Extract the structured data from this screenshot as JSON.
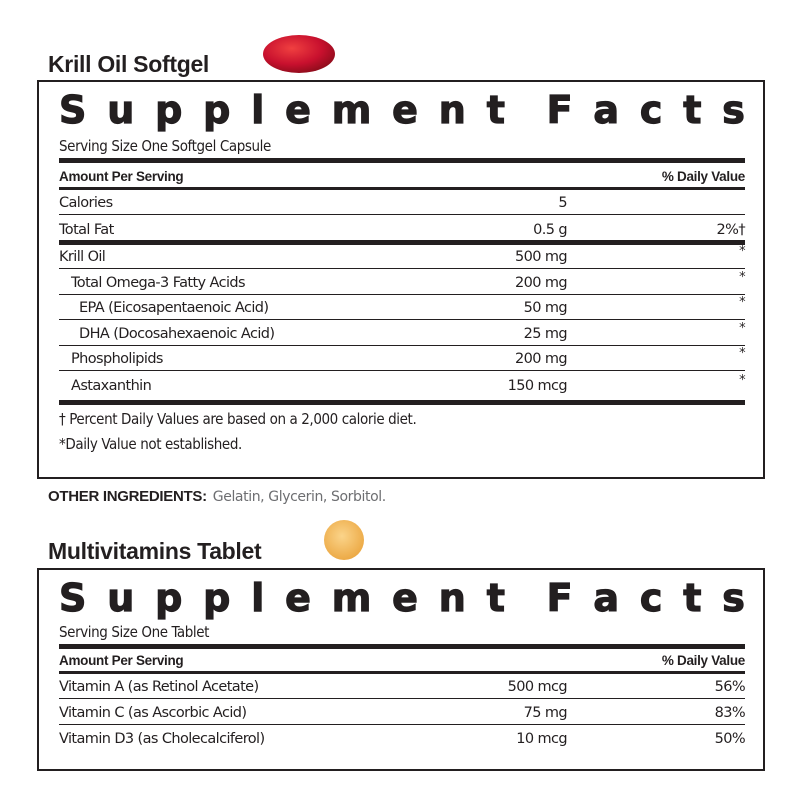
{
  "products": [
    {
      "name": "Krill Oil Softgel",
      "pill_color": "#c8102e",
      "facts_title": "Supplement Facts",
      "serving_size": "Serving Size One Softgel Capsule",
      "amount_header": "Amount Per Serving",
      "dv_header": "% Daily Value",
      "rows": [
        {
          "name": "Calories",
          "amount": "5",
          "dv": ""
        },
        {
          "name": "Total Fat",
          "amount": "0.5 g",
          "dv": "2%†"
        },
        {
          "name": "Krill Oil",
          "amount": "500 mg",
          "dv": "*"
        },
        {
          "name": "Total Omega-3 Fatty Acids",
          "amount": "200 mg",
          "dv": "*"
        },
        {
          "name": "EPA (Eicosapentaenoic Acid)",
          "amount": "50 mg",
          "dv": "*"
        },
        {
          "name": "DHA (Docosahexaenoic Acid)",
          "amount": "25 mg",
          "dv": "*"
        },
        {
          "name": "Phospholipids",
          "amount": "200 mg",
          "dv": "*"
        },
        {
          "name": "Astaxanthin",
          "amount": "150 mcg",
          "dv": "*"
        }
      ],
      "footnotes": [
        "† Percent Daily Values are based on a 2,000 calorie diet.",
        "*Daily Value not established."
      ],
      "other_ingredients_label": "OTHER INGREDIENTS:",
      "other_ingredients": "Gelatin, Glycerin, Sorbitol."
    },
    {
      "name": "Multivitamins Tablet",
      "pill_color": "#f5b95a",
      "facts_title": "Supplement Facts",
      "serving_size": "Serving Size One Tablet",
      "amount_header": "Amount Per Serving",
      "dv_header": "% Daily Value",
      "rows": [
        {
          "name": "Vitamin A (as Retinol Acetate)",
          "amount": "500 mcg",
          "dv": "56%"
        },
        {
          "name": "Vitamin C (as Ascorbic Acid)",
          "amount": "75 mg",
          "dv": "83%"
        },
        {
          "name": "Vitamin D3 (as Cholecalciferol)",
          "amount": "10 mcg",
          "dv": "50%"
        }
      ]
    }
  ]
}
